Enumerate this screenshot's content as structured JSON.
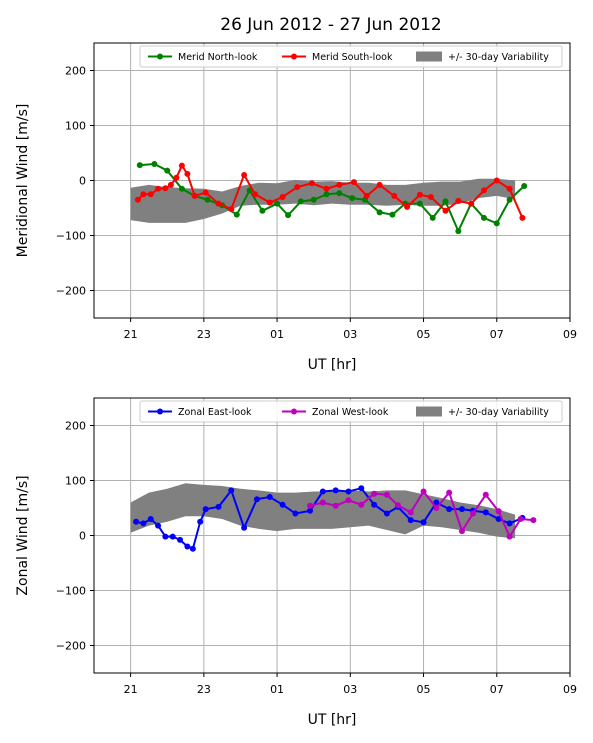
{
  "figure": {
    "title": "26 Jun 2012 - 27 Jun 2012"
  },
  "chart_data": [
    {
      "type": "line",
      "ylabel": "Meridional Wind [m/s]",
      "xlabel": "UT [hr]",
      "xlim": [
        20,
        33
      ],
      "ylim": [
        -250,
        250
      ],
      "xticks": [
        21,
        23,
        25,
        27,
        29,
        31,
        33
      ],
      "xtick_labels": [
        "21",
        "23",
        "01",
        "03",
        "05",
        "07",
        "09"
      ],
      "yticks": [
        -200,
        -100,
        0,
        100,
        200
      ],
      "ytick_labels": [
        "−200",
        "−100",
        "0",
        "100",
        "200"
      ],
      "grid": true,
      "legend_position": "top-right",
      "band": {
        "name": "+/- 30-day Variability",
        "color": "#808080",
        "x": [
          21.0,
          21.5,
          22.0,
          22.5,
          23.0,
          23.5,
          24.0,
          24.5,
          25.0,
          25.5,
          26.0,
          26.5,
          27.0,
          27.5,
          28.0,
          28.5,
          29.0,
          29.5,
          30.0,
          30.5,
          31.0,
          31.5
        ],
        "upper": [
          -13,
          -8,
          -12,
          -14,
          -15,
          -20,
          -10,
          -4,
          -5,
          1,
          -2,
          -1,
          -4,
          -4,
          -8,
          -8,
          -4,
          -2,
          -2,
          3,
          3,
          0
        ],
        "lower": [
          -72,
          -77,
          -77,
          -77,
          -70,
          -60,
          -46,
          -44,
          -44,
          -42,
          -45,
          -42,
          -44,
          -44,
          -46,
          -44,
          -46,
          -46,
          -42,
          -32,
          -28,
          -34
        ]
      },
      "series": [
        {
          "name": "Merid North-look",
          "color": "#008000",
          "x": [
            21.25,
            21.65,
            22.0,
            22.4,
            22.75,
            23.1,
            23.5,
            23.9,
            24.25,
            24.6,
            25.0,
            25.3,
            25.65,
            26.0,
            26.35,
            26.7,
            27.05,
            27.4,
            27.8,
            28.15,
            28.5,
            28.9,
            29.25,
            29.6,
            29.95,
            30.3,
            30.65,
            31.0,
            31.35,
            31.75
          ],
          "y": [
            28,
            30,
            18,
            -15,
            -28,
            -35,
            -45,
            -62,
            -18,
            -55,
            -42,
            -63,
            -38,
            -35,
            -25,
            -23,
            -32,
            -35,
            -58,
            -62,
            -42,
            -42,
            -68,
            -38,
            -92,
            -42,
            -68,
            -78,
            -35,
            -10
          ]
        },
        {
          "name": "Merid South-look",
          "color": "#ff0000",
          "x": [
            21.2,
            21.35,
            21.55,
            21.75,
            21.95,
            22.1,
            22.25,
            22.4,
            22.55,
            22.75,
            23.05,
            23.4,
            23.75,
            24.1,
            24.4,
            24.8,
            25.15,
            25.55,
            25.95,
            26.35,
            26.7,
            27.1,
            27.45,
            27.8,
            28.2,
            28.55,
            28.9,
            29.2,
            29.6,
            29.95,
            30.3,
            30.65,
            31.0,
            31.35,
            31.7
          ],
          "y": [
            -35,
            -25,
            -25,
            -15,
            -14,
            -8,
            5,
            27,
            12,
            -28,
            -22,
            -42,
            -52,
            10,
            -25,
            -40,
            -30,
            -12,
            -5,
            -15,
            -8,
            -3,
            -28,
            -8,
            -28,
            -48,
            -26,
            -30,
            -55,
            -37,
            -42,
            -18,
            0,
            -15,
            -68
          ]
        }
      ]
    },
    {
      "type": "line",
      "ylabel": "Zonal Wind [m/s]",
      "xlabel": "UT [hr]",
      "xlim": [
        20,
        33
      ],
      "ylim": [
        -250,
        250
      ],
      "xticks": [
        21,
        23,
        25,
        27,
        29,
        31,
        33
      ],
      "xtick_labels": [
        "21",
        "23",
        "01",
        "03",
        "05",
        "07",
        "09"
      ],
      "yticks": [
        -200,
        -100,
        0,
        100,
        200
      ],
      "ytick_labels": [
        "−200",
        "−100",
        "0",
        "100",
        "200"
      ],
      "grid": true,
      "legend_position": "top-right",
      "band": {
        "name": "+/- 30-day Variability",
        "color": "#808080",
        "x": [
          21.0,
          21.5,
          22.0,
          22.5,
          23.0,
          23.5,
          24.0,
          24.5,
          25.0,
          25.5,
          26.0,
          26.5,
          27.0,
          27.5,
          28.0,
          28.5,
          29.0,
          29.5,
          30.0,
          30.5,
          31.0,
          31.5
        ],
        "upper": [
          60,
          78,
          85,
          95,
          92,
          90,
          85,
          82,
          78,
          78,
          80,
          80,
          82,
          80,
          82,
          82,
          75,
          68,
          60,
          55,
          48,
          38
        ],
        "lower": [
          5,
          18,
          25,
          35,
          35,
          30,
          18,
          12,
          8,
          12,
          12,
          12,
          15,
          18,
          10,
          2,
          18,
          15,
          10,
          5,
          -2,
          -5
        ]
      },
      "series": [
        {
          "name": "Zonal East-look",
          "color": "#0000ff",
          "x": [
            21.15,
            21.35,
            21.55,
            21.75,
            21.95,
            22.15,
            22.35,
            22.55,
            22.7,
            22.9,
            23.05,
            23.4,
            23.75,
            24.1,
            24.45,
            24.8,
            25.15,
            25.5,
            25.9,
            26.25,
            26.6,
            26.95,
            27.3,
            27.65,
            28.0,
            28.3,
            28.65,
            29.0,
            29.35,
            29.7,
            30.05,
            30.35,
            30.7,
            31.05,
            31.35,
            31.7
          ],
          "y": [
            25,
            22,
            30,
            18,
            -2,
            -2,
            -8,
            -20,
            -24,
            25,
            48,
            52,
            82,
            14,
            66,
            70,
            56,
            40,
            45,
            80,
            82,
            80,
            86,
            56,
            40,
            52,
            28,
            24,
            60,
            48,
            48,
            45,
            42,
            30,
            22,
            32
          ]
        },
        {
          "name": "Zonal West-look",
          "color": "#bf00bf",
          "x": [
            25.9,
            26.25,
            26.6,
            26.95,
            27.3,
            27.65,
            28.0,
            28.3,
            28.65,
            29.0,
            29.35,
            29.7,
            30.05,
            30.35,
            30.7,
            31.05,
            31.35,
            31.65,
            32.0
          ],
          "y": [
            54,
            60,
            54,
            64,
            56,
            76,
            74,
            55,
            42,
            80,
            50,
            78,
            8,
            40,
            74,
            44,
            -2,
            30,
            28
          ]
        }
      ]
    }
  ]
}
